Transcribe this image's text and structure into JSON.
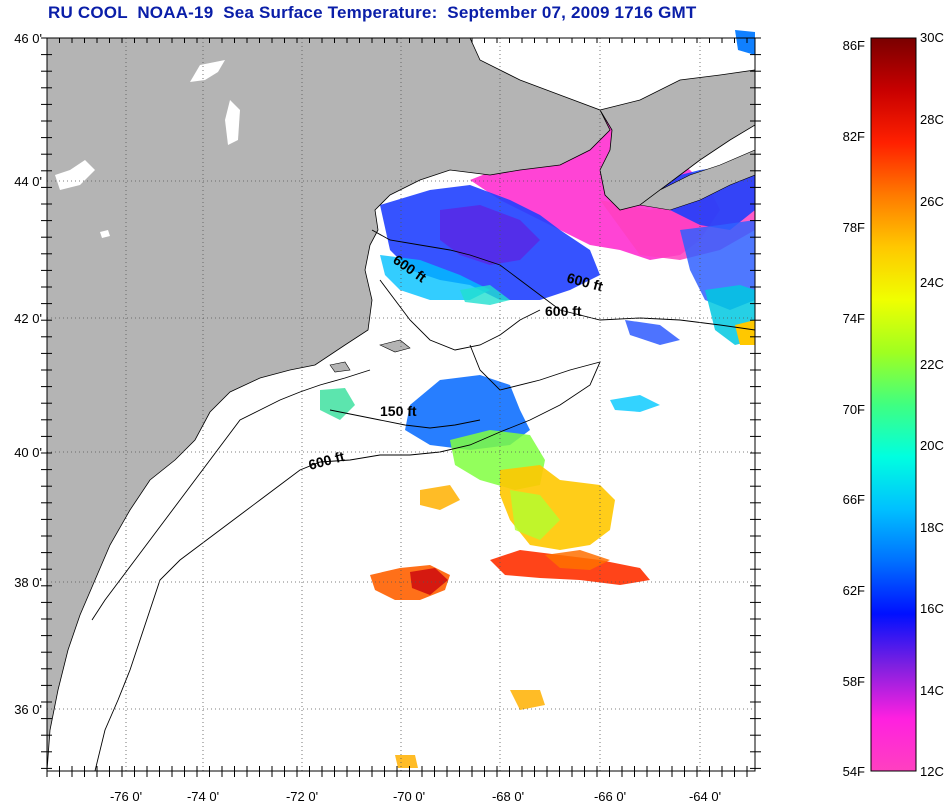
{
  "title": "RU COOL  NOAA-19  Sea Surface Temperature:  September 07, 2009 1716 GMT",
  "map": {
    "latitude_labels": [
      "46 0'",
      "44 0'",
      "42 0'",
      "40 0'",
      "38 0'",
      "36 0'"
    ],
    "longitude_labels": [
      "-76 0'",
      "-74 0'",
      "-72 0'",
      "-70 0'",
      "-68 0'",
      "-66 0'",
      "-64 0'"
    ],
    "depth_contour_labels": [
      "600 ft",
      "600 ft",
      "600 ft",
      "150 ft",
      "600 ft"
    ],
    "land_color": "#b4b4b4",
    "ocean_color": "#ffffff"
  },
  "colorbar": {
    "fahrenheit_labels": [
      "86F",
      "82F",
      "78F",
      "74F",
      "70F",
      "66F",
      "62F",
      "58F",
      "54F"
    ],
    "celsius_labels": [
      "30C",
      "28C",
      "26C",
      "24C",
      "22C",
      "20C",
      "18C",
      "16C",
      "14C",
      "12C"
    ],
    "range_c": [
      12,
      30
    ],
    "colors_top_to_bottom": [
      "#7a0000",
      "#c80000",
      "#ff2000",
      "#ff7a00",
      "#ffc800",
      "#f0ff00",
      "#a0ff20",
      "#40ff80",
      "#00ffe0",
      "#00c0ff",
      "#0070ff",
      "#0010ff",
      "#8020e0",
      "#ff20e0",
      "#ff40c0"
    ]
  }
}
